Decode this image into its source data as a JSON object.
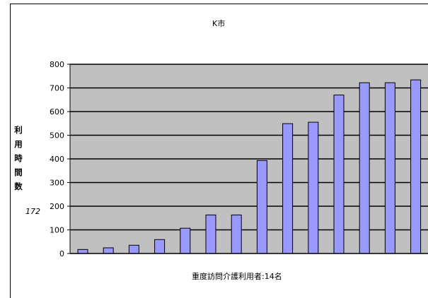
{
  "chart_data": {
    "type": "bar",
    "title": "K市",
    "xlabel": "重度訪問介護利用者:14名",
    "ylabel": "利用時間数",
    "side_note": "172",
    "categories": [
      "",
      "",
      "",
      "",
      "",
      "",
      "",
      "",
      "",
      "",
      "",
      "",
      "",
      ""
    ],
    "values": [
      17,
      24,
      35,
      59,
      107,
      163,
      163,
      393,
      549,
      555,
      670,
      722,
      722,
      734
    ],
    "ylim": [
      0,
      800
    ],
    "yticks": [
      "0",
      "100",
      "200",
      "300",
      "400",
      "500",
      "600",
      "700",
      "800"
    ],
    "grid": true,
    "legend": "none",
    "colors": {
      "bar_fill": "#9999ff",
      "bar_stroke": "#000000",
      "plot_background": "#c0c0c0",
      "gridline": "#000000"
    }
  }
}
